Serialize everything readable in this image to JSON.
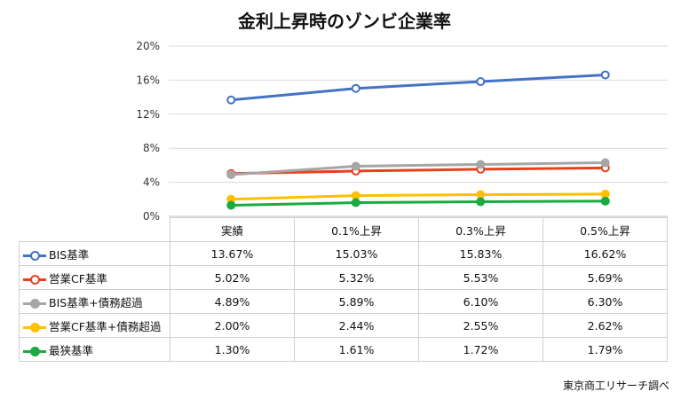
{
  "chart_data": {
    "type": "line",
    "title": "金利上昇時のゾンビ企業率",
    "categories": [
      "実績",
      "0.1%上昇",
      "0.3%上昇",
      "0.5%上昇"
    ],
    "ylim": [
      0,
      20
    ],
    "yticks": [
      "0%",
      "4%",
      "8%",
      "12%",
      "16%",
      "20%"
    ],
    "grid": true,
    "legend": "table-rows",
    "series": [
      {
        "name": "BIS基準",
        "color": "#4472c4",
        "marker": "hollow",
        "values": [
          13.67,
          15.03,
          15.83,
          16.62
        ],
        "labels": [
          "13.67%",
          "15.03%",
          "15.83%",
          "16.62%"
        ]
      },
      {
        "name": "営業CF基準",
        "color": "#e8401c",
        "marker": "hollow",
        "values": [
          5.02,
          5.32,
          5.53,
          5.69
        ],
        "labels": [
          "5.02%",
          "5.32%",
          "5.53%",
          "5.69%"
        ]
      },
      {
        "name": "BIS基準+債務超過",
        "color": "#a6a6a6",
        "marker": "filled",
        "values": [
          4.89,
          5.89,
          6.1,
          6.3
        ],
        "labels": [
          "4.89%",
          "5.89%",
          "6.10%",
          "6.30%"
        ]
      },
      {
        "name": "営業CF基準+債務超過",
        "color": "#ffc000",
        "marker": "filled",
        "values": [
          2.0,
          2.44,
          2.55,
          2.62
        ],
        "labels": [
          "2.00%",
          "2.44%",
          "2.55%",
          "2.62%"
        ]
      },
      {
        "name": "最狭基準",
        "color": "#1aab40",
        "marker": "filled",
        "values": [
          1.3,
          1.61,
          1.72,
          1.79
        ],
        "labels": [
          "1.30%",
          "1.61%",
          "1.72%",
          "1.79%"
        ]
      }
    ]
  },
  "source": "東京商工リサーチ調べ"
}
